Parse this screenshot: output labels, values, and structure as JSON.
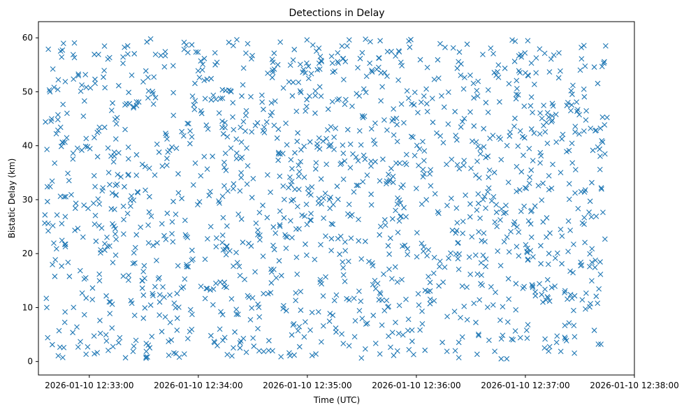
{
  "chart_data": {
    "type": "scatter",
    "title": "Detections in Delay",
    "xlabel": "Time (UTC)",
    "ylabel": "Bistatic Delay (km)",
    "marker": "x",
    "color": "#1f77b4",
    "grid": false,
    "xlim": [
      "2026-01-10 12:32:32",
      "2026-01-10 12:38:00"
    ],
    "ylim": [
      -2.5,
      63
    ],
    "x_ticks": [
      "2026-01-10 12:33:00",
      "2026-01-10 12:34:00",
      "2026-01-10 12:35:00",
      "2026-01-10 12:36:00",
      "2026-01-10 12:37:00",
      "2026-01-10 12:38:00"
    ],
    "y_ticks": [
      0,
      10,
      20,
      30,
      40,
      50,
      60
    ],
    "x_range": [
      "2026-01-10 12:32:35",
      "2026-01-10 12:37:45"
    ],
    "y_range": [
      0.5,
      59.8
    ],
    "point_count": 1500
  }
}
